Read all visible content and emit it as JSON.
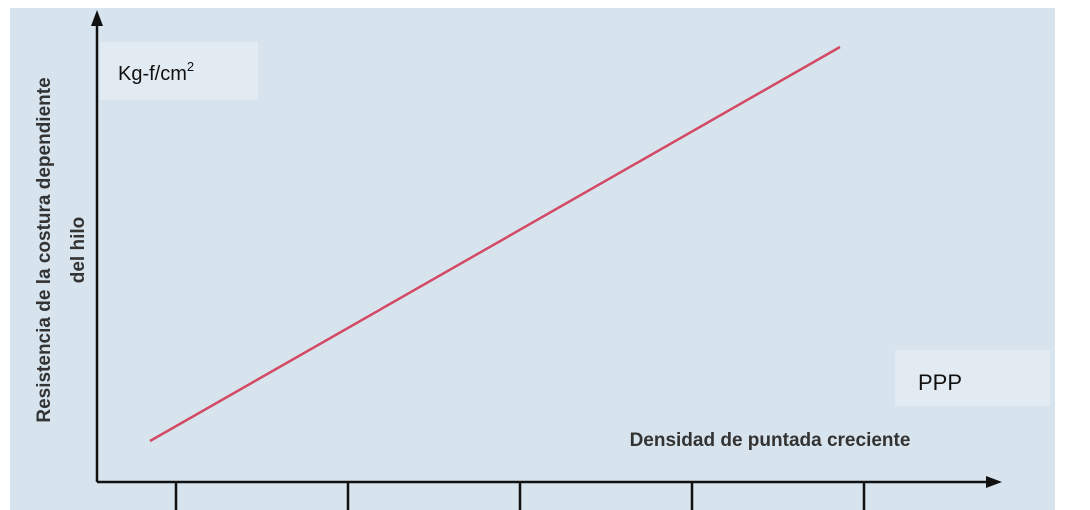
{
  "chart_data": {
    "type": "line",
    "y_axis_label": [
      "Resistencia de la costura dependiente",
      "del hilo"
    ],
    "x_axis_label": "Densidad de puntada creciente",
    "unit_label": {
      "base": "Kg-f/cm",
      "sup": "2"
    },
    "annotation": "PPP",
    "categories": [
      null,
      null,
      null,
      null,
      null
    ],
    "color": "#d24a63"
  }
}
